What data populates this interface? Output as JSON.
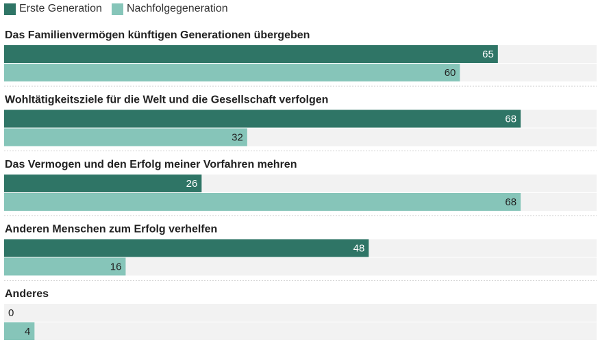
{
  "colors": {
    "first_generation": "#2f7566",
    "next_generation": "#86c5b9",
    "track": "#f2f2f2",
    "separator": "#cccccc",
    "label_on_dark": "#ffffff",
    "label_on_light": "#222222"
  },
  "chart_data": {
    "type": "bar",
    "orientation": "horizontal",
    "title": "",
    "xlabel": "",
    "ylabel": "",
    "xlim": [
      0,
      78
    ],
    "legend_position": "top-left",
    "categories": [
      "Das Familienvermögen künftigen Generationen übergeben",
      "Wohltätigkeitsziele für die Welt und die Gesellschaft verfolgen",
      "Das Vermogen und den Erfolg meiner Vorfahren mehren",
      "Anderen Menschen zum Erfolg verhelfen",
      "Anderes"
    ],
    "series": [
      {
        "name": "Erste Generation",
        "color": "#2f7566",
        "values": [
          65,
          68,
          26,
          48,
          0
        ]
      },
      {
        "name": "Nachfolgegeneration",
        "color": "#86c5b9",
        "values": [
          60,
          32,
          68,
          16,
          4
        ]
      }
    ]
  }
}
